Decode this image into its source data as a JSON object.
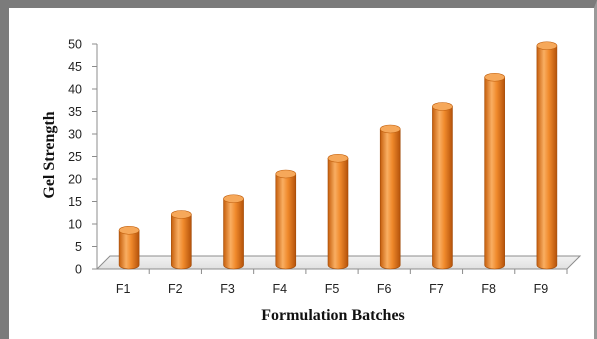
{
  "chart_data": {
    "type": "bar",
    "title": "",
    "xlabel": "Formulation Batches",
    "ylabel": "Gel  Strength",
    "categories": [
      "F1",
      "F2",
      "F3",
      "F4",
      "F5",
      "F6",
      "F7",
      "F8",
      "F9"
    ],
    "values": [
      8.5,
      12,
      15.5,
      21,
      24.5,
      31,
      36,
      42.5,
      49.5
    ],
    "ylim": [
      0,
      50
    ],
    "yticks": [
      0,
      5,
      10,
      15,
      20,
      25,
      30,
      35,
      40,
      45,
      50
    ],
    "grid": false,
    "legend": "none",
    "style": "3d-cylinder",
    "bar_color": "#f5973a"
  }
}
